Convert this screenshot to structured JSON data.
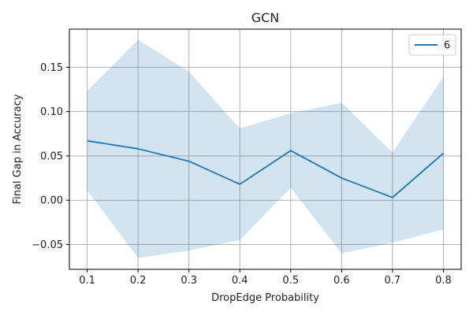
{
  "chart_data": {
    "type": "line",
    "title": "GCN",
    "xlabel": "DropEdge Probability",
    "ylabel": "Final Gap in Accuracy",
    "xlim": [
      0.065,
      0.835
    ],
    "ylim": [
      -0.078,
      0.193
    ],
    "x_ticks": [
      0.1,
      0.2,
      0.3,
      0.4,
      0.5,
      0.6,
      0.7,
      0.8
    ],
    "x_tick_labels": [
      "0.1",
      "0.2",
      "0.3",
      "0.4",
      "0.5",
      "0.6",
      "0.7",
      "0.8"
    ],
    "y_ticks": [
      -0.05,
      0.0,
      0.05,
      0.1,
      0.15
    ],
    "y_tick_labels": [
      "−0.05",
      "0.00",
      "0.05",
      "0.10",
      "0.15"
    ],
    "grid": true,
    "legend_position": "top-right",
    "series": [
      {
        "name": "6",
        "color": "#1f77b4",
        "band_color": "#1f77b4",
        "band_opacity": 0.2,
        "x": [
          0.1,
          0.2,
          0.3,
          0.4,
          0.5,
          0.6,
          0.7,
          0.8
        ],
        "values": [
          0.067,
          0.058,
          0.044,
          0.018,
          0.056,
          0.025,
          0.003,
          0.053
        ],
        "upper": [
          0.123,
          0.181,
          0.145,
          0.081,
          0.098,
          0.11,
          0.054,
          0.139
        ],
        "lower": [
          0.011,
          -0.065,
          -0.057,
          -0.045,
          0.014,
          -0.06,
          -0.048,
          -0.033
        ]
      }
    ]
  }
}
